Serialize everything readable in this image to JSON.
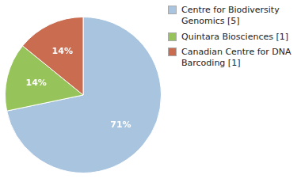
{
  "chart_data": {
    "type": "pie",
    "categories": [
      "Centre for Biodiversity\nGenomics [5]",
      "Quintara Biosciences [1]",
      "Canadian Centre for DNA\nBarcoding [1]"
    ],
    "values": [
      71,
      14,
      14
    ],
    "value_labels": [
      "71%",
      "14%",
      "14%"
    ],
    "colors": [
      "#a8c4df",
      "#97c45a",
      "#c96c50"
    ],
    "data_labels": true,
    "legend": "right"
  }
}
